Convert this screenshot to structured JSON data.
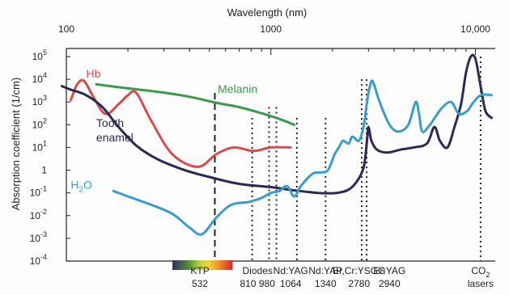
{
  "chart_data": {
    "type": "line",
    "title": "",
    "xlabel": "Wavelength (nm)",
    "ylabel": "Absorption coefficient (1/cm)",
    "x_scale": "log",
    "y_scale": "log",
    "xlim": [
      100,
      12500
    ],
    "ylim": [
      0.0001,
      100000
    ],
    "x_ticks": [
      {
        "value": 100,
        "label": "100"
      },
      {
        "value": 1000,
        "label": "1000"
      },
      {
        "value": 10000,
        "label": "10,000"
      }
    ],
    "y_ticks": [
      {
        "value": 100000,
        "base": "10",
        "exp": "5"
      },
      {
        "value": 10000,
        "base": "10",
        "exp": "4"
      },
      {
        "value": 1000,
        "base": "10",
        "exp": "3"
      },
      {
        "value": 100,
        "base": "10",
        "exp": "2"
      },
      {
        "value": 10,
        "base": "10",
        "exp": "1"
      },
      {
        "value": 1,
        "base": "1",
        "exp": ""
      },
      {
        "value": 0.1,
        "base": "10",
        "exp": "-1"
      },
      {
        "value": 0.01,
        "base": "10",
        "exp": "-2"
      },
      {
        "value": 0.001,
        "base": "10",
        "exp": "-3"
      },
      {
        "value": 0.0001,
        "base": "10",
        "exp": "-4"
      }
    ],
    "grid": false,
    "series": [
      {
        "name": "Hb",
        "color": "#d94c4c",
        "label_pos": [
          125,
          12000
        ],
        "points": [
          [
            105,
            1200
          ],
          [
            113,
            6000
          ],
          [
            122,
            8500
          ],
          [
            135,
            1800
          ],
          [
            155,
            300
          ],
          [
            180,
            800
          ],
          [
            200,
            2000
          ],
          [
            220,
            2500
          ],
          [
            260,
            150
          ],
          [
            330,
            5
          ],
          [
            440,
            1.4
          ],
          [
            540,
            5
          ],
          [
            660,
            10
          ],
          [
            820,
            7
          ],
          [
            1000,
            10
          ],
          [
            1250,
            10
          ]
        ]
      },
      {
        "name": "Melanin",
        "color": "#3a9a4a",
        "label_pos": [
          550,
          2500
        ],
        "points": [
          [
            140,
            6000
          ],
          [
            200,
            4000
          ],
          [
            300,
            2600
          ],
          [
            400,
            1700
          ],
          [
            550,
            900
          ],
          [
            700,
            600
          ],
          [
            900,
            320
          ],
          [
            1100,
            180
          ],
          [
            1300,
            100
          ]
        ]
      },
      {
        "name": "Tooth enamel",
        "label_lines": [
          "Tooth",
          "enamel"
        ],
        "color": "#2a2a55",
        "label_pos": [
          140,
          80
        ],
        "points": [
          [
            95,
            5000
          ],
          [
            105,
            3500
          ],
          [
            125,
            2000
          ],
          [
            150,
            600
          ],
          [
            180,
            80
          ],
          [
            220,
            12
          ],
          [
            280,
            3
          ],
          [
            380,
            1
          ],
          [
            500,
            0.5
          ],
          [
            700,
            0.25
          ],
          [
            1000,
            0.18
          ],
          [
            1300,
            0.13
          ],
          [
            1700,
            0.1
          ],
          [
            2100,
            0.1
          ],
          [
            2400,
            0.14
          ],
          [
            2650,
            0.35
          ],
          [
            2850,
            1.5
          ],
          [
            2950,
            20
          ],
          [
            3000,
            80
          ],
          [
            3100,
            20
          ],
          [
            3300,
            8
          ],
          [
            3700,
            6
          ],
          [
            4300,
            8
          ],
          [
            5000,
            10
          ],
          [
            5800,
            15
          ],
          [
            6300,
            80
          ],
          [
            6700,
            20
          ],
          [
            7300,
            10
          ],
          [
            7900,
            80
          ],
          [
            8500,
            800
          ],
          [
            9000,
            20000
          ],
          [
            9500,
            100000
          ],
          [
            10000,
            80000
          ],
          [
            10600,
            5000
          ],
          [
            11200,
            400
          ],
          [
            12000,
            200
          ]
        ]
      },
      {
        "name": "H2O",
        "label_main": "H",
        "label_sub": "2",
        "label_tail": "O",
        "color": "#3a9ccc",
        "label_pos": [
          105,
          0.15
        ],
        "points": [
          [
            170,
            0.12
          ],
          [
            200,
            0.07
          ],
          [
            260,
            0.03
          ],
          [
            330,
            0.012
          ],
          [
            400,
            0.003
          ],
          [
            460,
            0.0015
          ],
          [
            540,
            0.008
          ],
          [
            640,
            0.03
          ],
          [
            780,
            0.04
          ],
          [
            900,
            0.06
          ],
          [
            1000,
            0.1
          ],
          [
            1100,
            0.12
          ],
          [
            1200,
            0.2
          ],
          [
            1300,
            0.07
          ],
          [
            1400,
            0.2
          ],
          [
            1600,
            0.7
          ],
          [
            1750,
            0.8
          ],
          [
            1900,
            1
          ],
          [
            2050,
            5
          ],
          [
            2150,
            10
          ],
          [
            2250,
            20
          ],
          [
            2400,
            15
          ],
          [
            2500,
            30
          ],
          [
            2700,
            20
          ],
          [
            2850,
            100
          ],
          [
            2950,
            1000
          ],
          [
            3050,
            5000
          ],
          [
            3150,
            8000
          ],
          [
            3400,
            1000
          ],
          [
            3800,
            100
          ],
          [
            4200,
            50
          ],
          [
            4700,
            100
          ],
          [
            5100,
            1000
          ],
          [
            5300,
            300
          ],
          [
            5500,
            50
          ],
          [
            6000,
            100
          ],
          [
            6800,
            500
          ],
          [
            7600,
            1000
          ],
          [
            8300,
            300
          ],
          [
            9100,
            400
          ],
          [
            9800,
            1000
          ],
          [
            10600,
            2000
          ],
          [
            11600,
            2100
          ],
          [
            12000,
            2000
          ]
        ]
      }
    ],
    "laser_lines": [
      {
        "x": 532,
        "style": "dashed",
        "y_top": 2500
      },
      {
        "x": 810,
        "style": "dotted",
        "y_top": 200
      },
      {
        "x": 980,
        "style": "dotted",
        "y_top": 600
      },
      {
        "x": 1064,
        "style": "dotted",
        "y_top": 600
      },
      {
        "x": 1340,
        "style": "dotted",
        "y_top": 200
      },
      {
        "x": 1850,
        "style": "dotted",
        "y_top": 200
      },
      {
        "x": 2780,
        "style": "dotted",
        "y_top": 10000
      },
      {
        "x": 2940,
        "style": "dotted",
        "y_top": 10000
      },
      {
        "x": 10600,
        "style": "dotted",
        "y_top": 100000
      }
    ],
    "laser_labels": [
      {
        "x": 450,
        "line1": "KTP",
        "line2": "532"
      },
      {
        "x": 860,
        "line1": "Diodes",
        "line2": "810  980"
      },
      {
        "x": 1250,
        "line1": "Nd:YAG",
        "line2": "1064"
      },
      {
        "x": 1850,
        "line1": "Nd:YAP",
        "line2": "1340"
      },
      {
        "x": 2700,
        "line1": "Er,Cr:YSGG",
        "line2": "2780"
      },
      {
        "x": 3800,
        "line1": "Er:YAG",
        "line2": "2940"
      },
      {
        "x": 10600,
        "line1": "CO",
        "line1_sub": "2",
        "line2": "lasers"
      }
    ],
    "spectrum_bar": {
      "x_start": 330,
      "x_end": 650
    }
  }
}
